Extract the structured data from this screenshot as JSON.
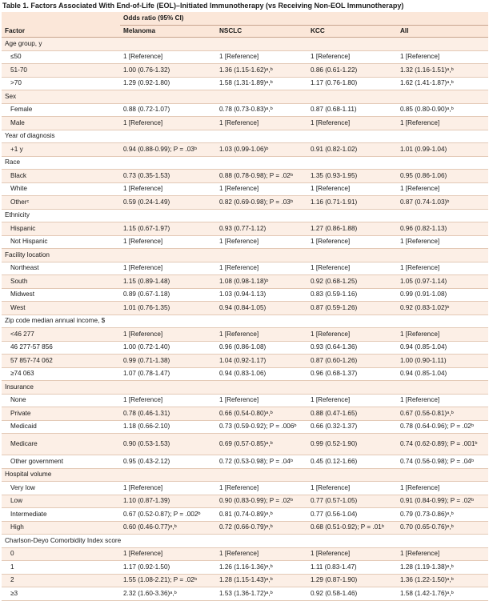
{
  "title": "Table 1. Factors Associated With End-of-Life (EOL)–Initiated Immunotherapy (vs Receiving Non-EOL Immunotherapy)",
  "header": {
    "group_label": "Odds ratio (95% CI)",
    "factor": "Factor",
    "columns": [
      "Melanoma",
      "NSCLC",
      "KCC",
      "All"
    ]
  },
  "rows": [
    {
      "type": "cat",
      "label": "Age group, y"
    },
    {
      "type": "row",
      "label": "≤50",
      "cells": [
        "1 [Reference]",
        "1 [Reference]",
        "1 [Reference]",
        "1 [Reference]"
      ]
    },
    {
      "type": "row",
      "label": "51-70",
      "cells": [
        "1.00 (0.76-1.32)",
        "1.36 (1.15-1.62)ᵃ,ᵇ",
        "0.86 (0.61-1.22)",
        "1.32 (1.16-1.51)ᵃ,ᵇ"
      ]
    },
    {
      "type": "row",
      "label": ">70",
      "cells": [
        "1.29 (0.92-1.80)",
        "1.58 (1.31-1.89)ᵃ,ᵇ",
        "1.17 (0.76-1.80)",
        "1.62 (1.41-1.87)ᵃ,ᵇ"
      ]
    },
    {
      "type": "cat",
      "label": "Sex"
    },
    {
      "type": "row",
      "label": "Female",
      "cells": [
        "0.88 (0.72-1.07)",
        "0.78 (0.73-0.83)ᵃ,ᵇ",
        "0.87 (0.68-1.11)",
        "0.85 (0.80-0.90)ᵃ,ᵇ"
      ]
    },
    {
      "type": "row",
      "label": "Male",
      "cells": [
        "1 [Reference]",
        "1 [Reference]",
        "1 [Reference]",
        "1 [Reference]"
      ]
    },
    {
      "type": "cat",
      "label": "Year of diagnosis"
    },
    {
      "type": "row",
      "label": "+1 y",
      "cells": [
        "0.94 (0.88-0.99); P = .03ᵇ",
        "1.03 (0.99-1.06)ᵇ",
        "0.91 (0.82-1.02)",
        "1.01 (0.99-1.04)"
      ]
    },
    {
      "type": "cat",
      "label": "Race"
    },
    {
      "type": "row",
      "label": "Black",
      "cells": [
        "0.73 (0.35-1.53)",
        "0.88 (0.78-0.98); P = .02ᵇ",
        "1.35 (0.93-1.95)",
        "0.95 (0.86-1.06)"
      ]
    },
    {
      "type": "row",
      "label": "White",
      "cells": [
        "1 [Reference]",
        "1 [Reference]",
        "1 [Reference]",
        "1 [Reference]"
      ]
    },
    {
      "type": "row",
      "label": "Otherᶜ",
      "cells": [
        "0.59 (0.24-1.49)",
        "0.82 (0.69-0.98); P = .03ᵇ",
        "1.16 (0.71-1.91)",
        "0.87 (0.74-1.03)ᵇ"
      ]
    },
    {
      "type": "cat",
      "label": "Ethnicity"
    },
    {
      "type": "row",
      "label": "Hispanic",
      "cells": [
        "1.15 (0.67-1.97)",
        "0.93 (0.77-1.12)",
        "1.27 (0.86-1.88)",
        "0.96 (0.82-1.13)"
      ]
    },
    {
      "type": "row",
      "label": "Not Hispanic",
      "cells": [
        "1 [Reference]",
        "1 [Reference]",
        "1 [Reference]",
        "1 [Reference]"
      ]
    },
    {
      "type": "cat",
      "label": "Facility location"
    },
    {
      "type": "row",
      "label": "Northeast",
      "cells": [
        "1 [Reference]",
        "1 [Reference]",
        "1 [Reference]",
        "1 [Reference]"
      ]
    },
    {
      "type": "row",
      "label": "South",
      "cells": [
        "1.15 (0.89-1.48)",
        "1.08 (0.98-1.18)ᵇ",
        "0.92 (0.68-1.25)",
        "1.05 (0.97-1.14)"
      ]
    },
    {
      "type": "row",
      "label": "Midwest",
      "cells": [
        "0.89 (0.67-1.18)",
        "1.03 (0.94-1.13)",
        "0.83 (0.59-1.16)",
        "0.99 (0.91-1.08)"
      ]
    },
    {
      "type": "row",
      "label": "West",
      "cells": [
        "1.01 (0.76-1.35)",
        "0.94 (0.84-1.05)",
        "0.87 (0.59-1.26)",
        "0.92 (0.83-1.02)ᵇ"
      ]
    },
    {
      "type": "cat",
      "label": "Zip code median annual income, $"
    },
    {
      "type": "row",
      "label": "<46 277",
      "cells": [
        "1 [Reference]",
        "1 [Reference]",
        "1 [Reference]",
        "1 [Reference]"
      ]
    },
    {
      "type": "row",
      "label": "46 277-57 856",
      "cells": [
        "1.00 (0.72-1.40)",
        "0.96 (0.86-1.08)",
        "0.93 (0.64-1.36)",
        "0.94 (0.85-1.04)"
      ]
    },
    {
      "type": "row",
      "label": "57 857-74 062",
      "cells": [
        "0.99 (0.71-1.38)",
        "1.04 (0.92-1.17)",
        "0.87 (0.60-1.26)",
        "1.00 (0.90-1.11)"
      ]
    },
    {
      "type": "row",
      "label": "≥74 063",
      "cells": [
        "1.07 (0.78-1.47)",
        "0.94 (0.83-1.06)",
        "0.96 (0.68-1.37)",
        "0.94 (0.85-1.04)"
      ]
    },
    {
      "type": "cat",
      "label": "Insurance"
    },
    {
      "type": "row",
      "label": "None",
      "cells": [
        "1 [Reference]",
        "1 [Reference]",
        "1 [Reference]",
        "1 [Reference]"
      ]
    },
    {
      "type": "row",
      "label": "Private",
      "cells": [
        "0.78 (0.46-1.31)",
        "0.66 (0.54-0.80)ᵃ,ᵇ",
        "0.88 (0.47-1.65)",
        "0.67 (0.56-0.81)ᵃ,ᵇ"
      ]
    },
    {
      "type": "row",
      "label": "Medicaid",
      "cells": [
        "1.18 (0.66-2.10)",
        "0.73 (0.59-0.92); P = .006ᵇ",
        "0.66 (0.32-1.37)",
        "0.78 (0.64-0.96); P = .02ᵇ"
      ]
    },
    {
      "type": "row",
      "tall": true,
      "label": "Medicare",
      "cells": [
        "0.90 (0.53-1.53)",
        "0.69 (0.57-0.85)ᵃ,ᵇ",
        "0.99 (0.52-1.90)",
        "0.74 (0.62-0.89); P = .001ᵇ"
      ]
    },
    {
      "type": "row",
      "label": "Other government",
      "cells": [
        "0.95 (0.43-2.12)",
        "0.72 (0.53-0.98); P = .04ᵇ",
        "0.45 (0.12-1.66)",
        "0.74 (0.56-0.98); P = .04ᵇ"
      ]
    },
    {
      "type": "cat",
      "label": "Hospital volume"
    },
    {
      "type": "row",
      "label": "Very low",
      "cells": [
        "1 [Reference]",
        "1 [Reference]",
        "1 [Reference]",
        "1 [Reference]"
      ]
    },
    {
      "type": "row",
      "label": "Low",
      "cells": [
        "1.10 (0.87-1.39)",
        "0.90 (0.83-0.99); P = .02ᵇ",
        "0.77 (0.57-1.05)",
        "0.91 (0.84-0.99); P = .02ᵇ"
      ]
    },
    {
      "type": "row",
      "label": "Intermediate",
      "cells": [
        "0.67 (0.52-0.87); P = .002ᵇ",
        "0.81 (0.74-0.89)ᵃ,ᵇ",
        "0.77 (0.56-1.04)",
        "0.79 (0.73-0.86)ᵃ,ᵇ"
      ]
    },
    {
      "type": "row",
      "label": "High",
      "cells": [
        "0.60 (0.46-0.77)ᵃ,ᵇ",
        "0.72 (0.66-0.79)ᵃ,ᵇ",
        "0.68 (0.51-0.92); P = .01ᵇ",
        "0.70 (0.65-0.76)ᵃ,ᵇ"
      ]
    },
    {
      "type": "cat",
      "label": "Charlson-Deyo Comorbidity Index score"
    },
    {
      "type": "row",
      "label": "0",
      "cells": [
        "1 [Reference]",
        "1 [Reference]",
        "1 [Reference]",
        "1 [Reference]"
      ]
    },
    {
      "type": "row",
      "label": "1",
      "cells": [
        "1.17 (0.92-1.50)",
        "1.26 (1.16-1.36)ᵃ,ᵇ",
        "1.11 (0.83-1.47)",
        "1.28 (1.19-1.38)ᵃ,ᵇ"
      ]
    },
    {
      "type": "row",
      "label": "2",
      "cells": [
        "1.55 (1.08-2.21); P = .02ᵇ",
        "1.28 (1.15-1.43)ᵃ,ᵇ",
        "1.29 (0.87-1.90)",
        "1.36 (1.22-1.50)ᵃ,ᵇ"
      ]
    },
    {
      "type": "row",
      "label": "≥3",
      "cells": [
        "2.32 (1.60-3.36)ᵃ,ᵇ",
        "1.53 (1.36-1.72)ᵃ,ᵇ",
        "0.92 (0.58-1.46)",
        "1.58 (1.42-1.76)ᵃ,ᵇ"
      ]
    }
  ]
}
